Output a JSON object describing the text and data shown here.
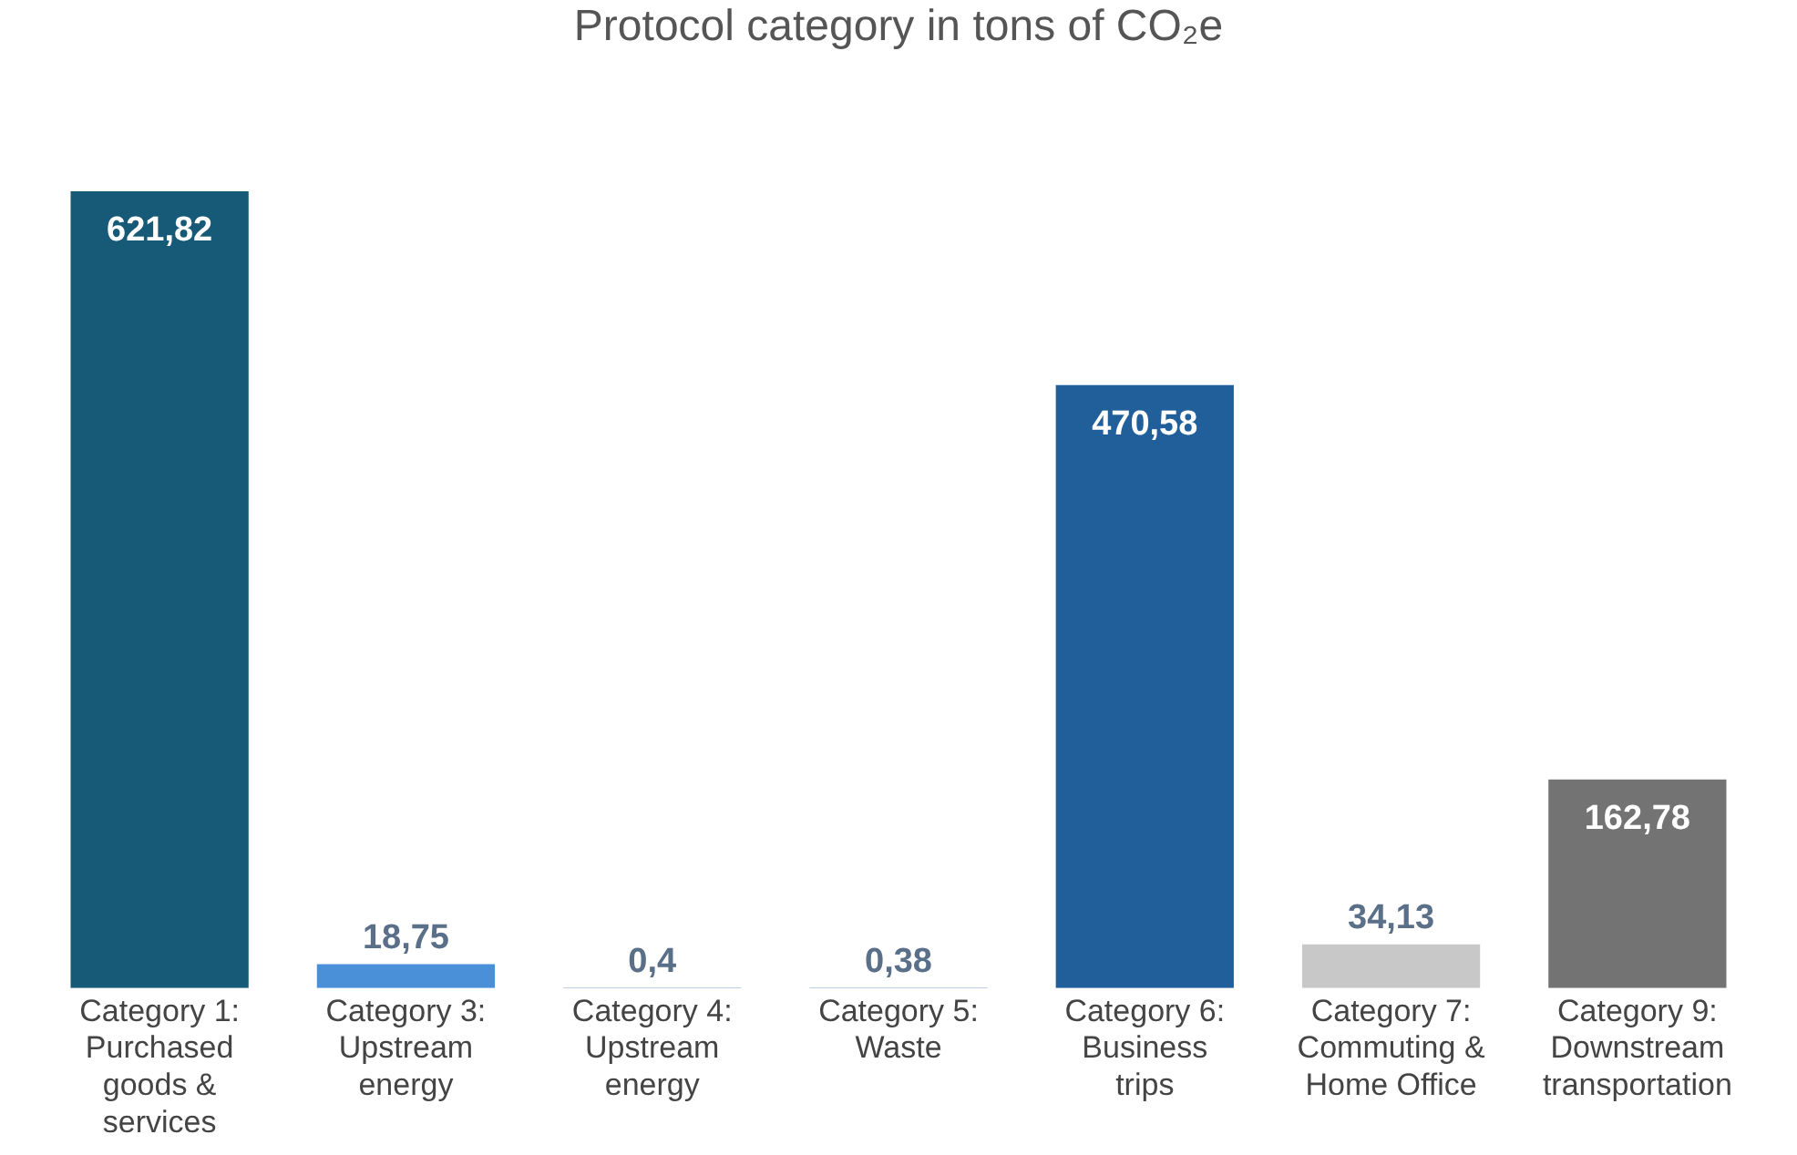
{
  "chart_data": {
    "type": "bar",
    "title": "Protocol category in tons of CO₂e",
    "categories": [
      "Category 1: Purchased goods & services",
      "Category 3: Upstream energy",
      "Category 4: Upstream energy",
      "Category 5: Waste",
      "Category 6: Business trips",
      "Category 7: Commuting & Home Office",
      "Category 9: Downstream transportation"
    ],
    "values": [
      621.82,
      18.75,
      0.4,
      0.38,
      470.58,
      34.13,
      162.78
    ],
    "value_labels": [
      "621,82",
      "18,75",
      "0,4",
      "0,38",
      "470,58",
      "34,13",
      "162,78"
    ],
    "colors": [
      "#175a78",
      "#4a90d9",
      "#4a80c0",
      "#4a80c0",
      "#215f9a",
      "#c8c8c8",
      "#737373"
    ],
    "grid": false,
    "legend": false
  }
}
